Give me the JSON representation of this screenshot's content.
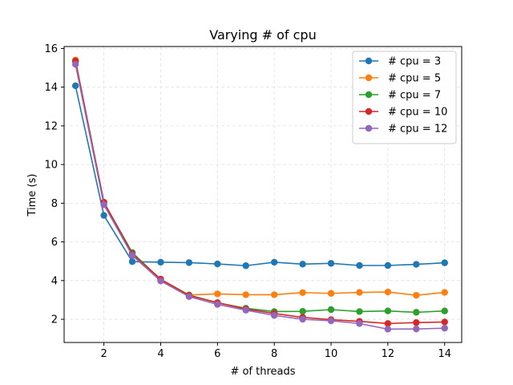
{
  "chart_data": {
    "type": "line",
    "title": "Varying # of cpu",
    "xlabel": "# of threads",
    "ylabel": "Time (s)",
    "xlim": [
      0.6,
      14.6
    ],
    "ylim": [
      0.8,
      16.1
    ],
    "xticks": [
      2,
      4,
      6,
      8,
      10,
      12,
      14
    ],
    "yticks": [
      2,
      4,
      6,
      8,
      10,
      12,
      14,
      16
    ],
    "grid": true,
    "legend_position": "top-right",
    "x": [
      1,
      2,
      3,
      4,
      5,
      6,
      7,
      8,
      9,
      10,
      11,
      12,
      13,
      14
    ],
    "series": [
      {
        "name": "# cpu = 3",
        "color": "#1f77b4",
        "values": [
          14.07,
          7.37,
          4.98,
          4.95,
          4.93,
          4.86,
          4.77,
          4.95,
          4.85,
          4.89,
          4.78,
          4.78,
          4.84,
          4.92
        ]
      },
      {
        "name": "# cpu = 5",
        "color": "#ff7f0e",
        "values": [
          15.4,
          8.0,
          5.4,
          4.07,
          3.26,
          3.31,
          3.27,
          3.27,
          3.38,
          3.34,
          3.39,
          3.41,
          3.24,
          3.39
        ]
      },
      {
        "name": "# cpu = 7",
        "color": "#2ca02c",
        "values": [
          15.32,
          8.05,
          5.45,
          4.05,
          3.25,
          2.85,
          2.57,
          2.4,
          2.41,
          2.5,
          2.4,
          2.43,
          2.36,
          2.43
        ]
      },
      {
        "name": "# cpu = 10",
        "color": "#d62728",
        "values": [
          15.35,
          8.05,
          5.38,
          4.07,
          3.23,
          2.86,
          2.53,
          2.3,
          2.1,
          1.98,
          1.89,
          1.78,
          1.83,
          1.86
        ]
      },
      {
        "name": "# cpu = 12",
        "color": "#9467bd",
        "values": [
          15.18,
          7.92,
          5.3,
          3.98,
          3.17,
          2.77,
          2.47,
          2.2,
          2.0,
          1.92,
          1.78,
          1.49,
          1.5,
          1.54
        ]
      }
    ]
  }
}
